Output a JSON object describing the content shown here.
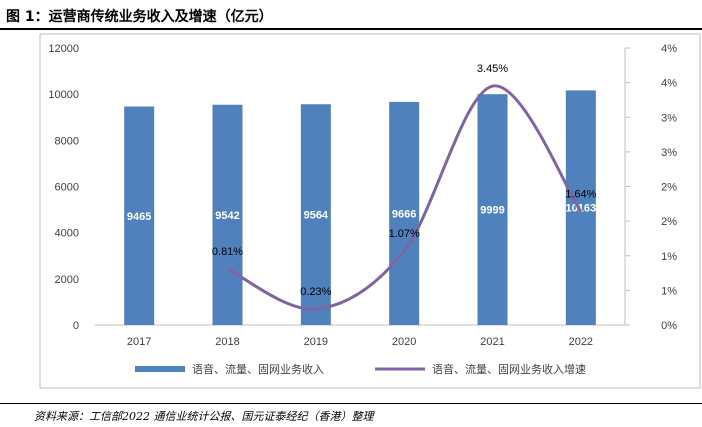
{
  "header": {
    "title": "图 1：运营商传统业务收入及增速（亿元）"
  },
  "footer": {
    "source": "资料来源：工信部2022 通信业统计公报、国元证泰经纪（香港）整理"
  },
  "chart_data": {
    "type": "bar",
    "categories": [
      "2017",
      "2018",
      "2019",
      "2020",
      "2021",
      "2022"
    ],
    "series": [
      {
        "name": "语音、流量、固网业务收入",
        "type": "bar",
        "axis": "left",
        "values": [
          9465,
          9542,
          9564,
          9666,
          9999,
          10163
        ],
        "labels": [
          "9465",
          "9542",
          "9564",
          "9666",
          "9999",
          "10163"
        ],
        "color": "#4f81bd"
      },
      {
        "name": "语音、流量、固网业务收入增速",
        "type": "line",
        "axis": "right",
        "values": [
          null,
          0.81,
          0.23,
          1.07,
          3.45,
          1.64
        ],
        "labels": [
          "",
          "0.81%",
          "0.23%",
          "1.07%",
          "3.45%",
          "1.64%"
        ],
        "color": "#8064a2"
      }
    ],
    "y_left": {
      "ylim": [
        0,
        12000
      ],
      "ticks": [
        "0",
        "2000",
        "4000",
        "6000",
        "8000",
        "10000",
        "12000"
      ]
    },
    "y_right": {
      "ylim": [
        0,
        4
      ],
      "ticks": [
        "0%",
        "1%",
        "1%",
        "2%",
        "2%",
        "3%",
        "3%",
        "4%",
        "4%"
      ]
    },
    "legend": "bottom"
  }
}
